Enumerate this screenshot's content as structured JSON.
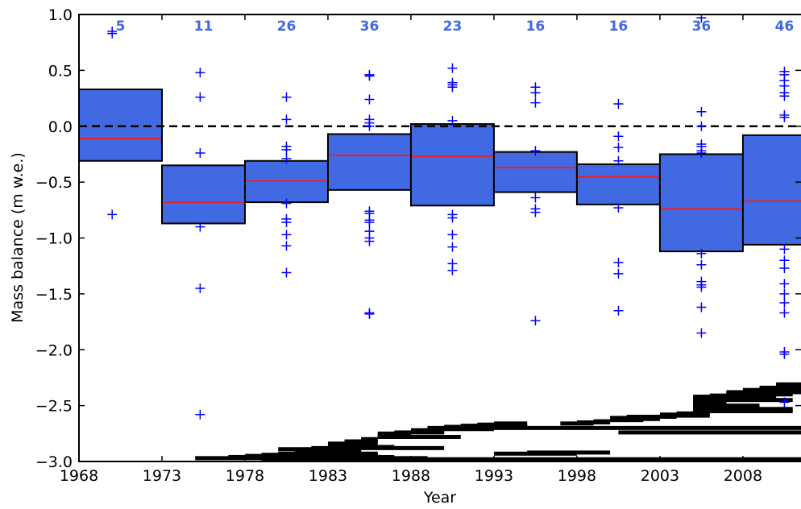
{
  "chart_data": {
    "type": "box",
    "xlabel": "Year",
    "ylabel": "Mass balance (m w.e.)",
    "xlim": [
      1968,
      2011.5
    ],
    "ylim": [
      -3.0,
      1.0
    ],
    "xticks": [
      "1968",
      "1973",
      "1978",
      "1983",
      "1988",
      "1993",
      "1998",
      "2003",
      "2008"
    ],
    "xtick_values": [
      1968,
      1973,
      1978,
      1983,
      1988,
      1993,
      1998,
      2003,
      2008
    ],
    "yticks": [
      "1.0",
      "0.5",
      "0.0",
      "−0.5",
      "−1.0",
      "−1.5",
      "−2.0",
      "−2.5",
      "−3.0"
    ],
    "ytick_values": [
      1.0,
      0.5,
      0.0,
      -0.5,
      -1.0,
      -1.5,
      -2.0,
      -2.5,
      -3.0
    ],
    "reference_line": 0.0,
    "colors": {
      "box": "#4169e1",
      "median": "#e8202a",
      "outlier": "#0000ff",
      "count": "#4169e1",
      "bar": "#000000"
    },
    "boxes": [
      {
        "x0": 1968,
        "x1": 1973,
        "q1": -0.31,
        "median": -0.11,
        "q3": 0.33,
        "count": "5",
        "outliers": [
          [
            1970,
            0.85
          ],
          [
            1970,
            0.83
          ],
          [
            1970,
            -0.79
          ]
        ]
      },
      {
        "x0": 1973,
        "x1": 1978,
        "q1": -0.87,
        "median": -0.68,
        "q3": -0.35,
        "count": "11",
        "outliers": [
          [
            1975.3,
            0.48
          ],
          [
            1975.3,
            0.26
          ],
          [
            1975.3,
            -0.24
          ],
          [
            1975.3,
            -0.9
          ],
          [
            1975.3,
            -1.45
          ],
          [
            1975.3,
            -2.58
          ]
        ]
      },
      {
        "x0": 1978,
        "x1": 1983,
        "q1": -0.68,
        "median": -0.49,
        "q3": -0.31,
        "count": "26",
        "outliers": [
          [
            1980.5,
            0.26
          ],
          [
            1980.5,
            0.06
          ],
          [
            1980.5,
            -0.18
          ],
          [
            1980.5,
            -0.21
          ],
          [
            1980.5,
            -0.29
          ],
          [
            1980.5,
            -0.69
          ],
          [
            1980.5,
            -0.83
          ],
          [
            1980.5,
            -0.86
          ],
          [
            1980.5,
            -0.97
          ],
          [
            1980.5,
            -1.07
          ],
          [
            1980.5,
            -1.31
          ]
        ]
      },
      {
        "x0": 1983,
        "x1": 1988,
        "q1": -0.57,
        "median": -0.26,
        "q3": -0.07,
        "count": "36",
        "outliers": [
          [
            1985.5,
            0.46
          ],
          [
            1985.5,
            0.45
          ],
          [
            1985.5,
            0.24
          ],
          [
            1985.5,
            0.06
          ],
          [
            1985.5,
            0.03
          ],
          [
            1985.5,
            0.0
          ],
          [
            1985.5,
            -0.76
          ],
          [
            1985.5,
            -0.78
          ],
          [
            1985.5,
            -0.84
          ],
          [
            1985.5,
            -0.86
          ],
          [
            1985.5,
            -0.94
          ],
          [
            1985.5,
            -1.0
          ],
          [
            1985.5,
            -1.03
          ],
          [
            1985.5,
            -1.67
          ],
          [
            1985.5,
            -1.68
          ]
        ]
      },
      {
        "x0": 1988,
        "x1": 1993,
        "q1": -0.71,
        "median": -0.27,
        "q3": 0.02,
        "count": "23",
        "outliers": [
          [
            1990.5,
            0.52
          ],
          [
            1990.5,
            0.39
          ],
          [
            1990.5,
            0.37
          ],
          [
            1990.5,
            0.35
          ],
          [
            1990.5,
            0.05
          ],
          [
            1990.5,
            -0.79
          ],
          [
            1990.5,
            -0.82
          ],
          [
            1990.5,
            -0.97
          ],
          [
            1990.5,
            -1.08
          ],
          [
            1990.5,
            -1.23
          ],
          [
            1990.5,
            -1.29
          ]
        ]
      },
      {
        "x0": 1993,
        "x1": 1998,
        "q1": -0.59,
        "median": -0.37,
        "q3": -0.23,
        "count": "16",
        "outliers": [
          [
            1995.5,
            0.35
          ],
          [
            1995.5,
            0.3
          ],
          [
            1995.5,
            0.21
          ],
          [
            1995.5,
            -0.22
          ],
          [
            1995.5,
            -0.64
          ],
          [
            1995.5,
            -0.74
          ],
          [
            1995.5,
            -0.77
          ],
          [
            1995.5,
            -1.74
          ]
        ]
      },
      {
        "x0": 1998,
        "x1": 2003,
        "q1": -0.7,
        "median": -0.45,
        "q3": -0.34,
        "count": "16",
        "outliers": [
          [
            2000.5,
            0.2
          ],
          [
            2000.5,
            -0.09
          ],
          [
            2000.5,
            -0.19
          ],
          [
            2000.5,
            -0.31
          ],
          [
            2000.5,
            -0.73
          ],
          [
            2000.5,
            -1.22
          ],
          [
            2000.5,
            -1.32
          ],
          [
            2000.5,
            -1.65
          ]
        ]
      },
      {
        "x0": 2003,
        "x1": 2008,
        "q1": -1.12,
        "median": -0.74,
        "q3": -0.25,
        "count": "36",
        "outliers": [
          [
            2005.5,
            0.97
          ],
          [
            2005.5,
            0.13
          ],
          [
            2005.5,
            0.0
          ],
          [
            2005.5,
            -0.16
          ],
          [
            2005.5,
            -0.18
          ],
          [
            2005.5,
            -0.22
          ],
          [
            2005.5,
            -0.24
          ],
          [
            2005.5,
            -1.14
          ],
          [
            2005.5,
            -1.24
          ],
          [
            2005.5,
            -1.39
          ],
          [
            2005.5,
            -1.42
          ],
          [
            2005.5,
            -1.44
          ],
          [
            2005.5,
            -1.62
          ],
          [
            2005.5,
            -1.85
          ]
        ]
      },
      {
        "x0": 2008,
        "x1": 2013,
        "q1": -1.06,
        "median": -0.67,
        "q3": -0.08,
        "count": "46",
        "outliers": [
          [
            2010.5,
            0.49
          ],
          [
            2010.5,
            0.46
          ],
          [
            2010.5,
            0.41
          ],
          [
            2010.5,
            0.36
          ],
          [
            2010.5,
            0.3
          ],
          [
            2010.5,
            0.27
          ],
          [
            2010.5,
            0.1
          ],
          [
            2010.5,
            0.08
          ],
          [
            2010.5,
            -1.1
          ],
          [
            2010.5,
            -1.2
          ],
          [
            2010.5,
            -1.27
          ],
          [
            2010.5,
            -1.41
          ],
          [
            2010.5,
            -1.5
          ],
          [
            2010.5,
            -1.58
          ],
          [
            2010.5,
            -1.67
          ],
          [
            2010.5,
            -2.02
          ],
          [
            2010.5,
            -2.04
          ],
          [
            2010.5,
            -2.47
          ]
        ]
      }
    ],
    "record_spans": [
      [
        1979,
        2011.5,
        -2.98
      ],
      [
        1975,
        1989,
        -2.97
      ],
      [
        1977,
        1987,
        -2.96
      ],
      [
        1978,
        1986,
        -2.95
      ],
      [
        1979,
        1986,
        -2.94
      ],
      [
        1980,
        1986,
        -2.93
      ],
      [
        1981,
        1985,
        -2.92
      ],
      [
        1982,
        1985,
        -2.91
      ],
      [
        1981,
        1983,
        -2.9
      ],
      [
        1980,
        1983,
        -2.89
      ],
      [
        1982,
        1990,
        -2.88
      ],
      [
        1983,
        1987,
        -2.87
      ],
      [
        1983,
        1986,
        -2.86
      ],
      [
        1984,
        1985,
        -2.85
      ],
      [
        1983,
        1985,
        -2.84
      ],
      [
        1984,
        1986,
        -2.83
      ],
      [
        1984,
        1985,
        -2.82
      ],
      [
        1985,
        1986,
        -2.81
      ],
      [
        1985,
        1986,
        -2.8
      ],
      [
        1986,
        1991,
        -2.78
      ],
      [
        1986,
        1988,
        -2.76
      ],
      [
        1986,
        1988,
        -2.75
      ],
      [
        1987,
        1990,
        -2.74
      ],
      [
        1988,
        1990,
        -2.73
      ],
      [
        1988,
        1990,
        -2.72
      ],
      [
        1989,
        1993,
        -2.71
      ],
      [
        1989,
        2011.5,
        -2.7
      ],
      [
        1990,
        1995,
        -2.69
      ],
      [
        1991,
        1995,
        -2.68
      ],
      [
        1992,
        1995,
        -2.67
      ],
      [
        1993,
        1995,
        -2.66
      ],
      [
        1997,
        1999,
        -2.66
      ],
      [
        1998,
        2000,
        -2.65
      ],
      [
        1999,
        2000,
        -2.64
      ],
      [
        2000,
        2002,
        -2.63
      ],
      [
        2000,
        2003,
        -2.62
      ],
      [
        2000,
        2003,
        -2.61
      ],
      [
        2001,
        2004,
        -2.6
      ],
      [
        2003,
        2006,
        -2.59
      ],
      [
        2003,
        2006,
        -2.58
      ],
      [
        2004,
        2006,
        -2.57
      ],
      [
        2005,
        2011,
        -2.55
      ],
      [
        2005,
        2010,
        -2.54
      ],
      [
        2005,
        2011,
        -2.53
      ],
      [
        2005,
        2008,
        -2.52
      ],
      [
        2005,
        2007,
        -2.51
      ],
      [
        2006,
        2009,
        -2.5
      ],
      [
        2006,
        2007,
        -2.49
      ],
      [
        2005,
        2007,
        -2.48
      ],
      [
        2005,
        2007,
        -2.47
      ],
      [
        2005,
        2007,
        -2.46
      ],
      [
        2006,
        2011,
        -2.45
      ],
      [
        2006,
        2010,
        -2.44
      ],
      [
        2005,
        2007,
        -2.43
      ],
      [
        2005,
        2010,
        -2.42
      ],
      [
        2006,
        2008,
        -2.41
      ],
      [
        2007,
        2011,
        -2.4
      ],
      [
        2008,
        2010,
        -2.39
      ],
      [
        2007,
        2011.5,
        -2.38
      ],
      [
        2008,
        2011,
        -2.37
      ],
      [
        2008,
        2011.5,
        -2.36
      ],
      [
        2009,
        2011.5,
        -2.35
      ],
      [
        2009,
        2011.5,
        -2.34
      ],
      [
        2010,
        2011.5,
        -2.33
      ],
      [
        2010,
        2011.5,
        -2.32
      ],
      [
        2010,
        2011.5,
        -2.31
      ],
      [
        2000.5,
        2011.5,
        -2.74
      ],
      [
        1995,
        2000,
        -2.92
      ],
      [
        1993,
        1998,
        -2.93
      ]
    ]
  }
}
